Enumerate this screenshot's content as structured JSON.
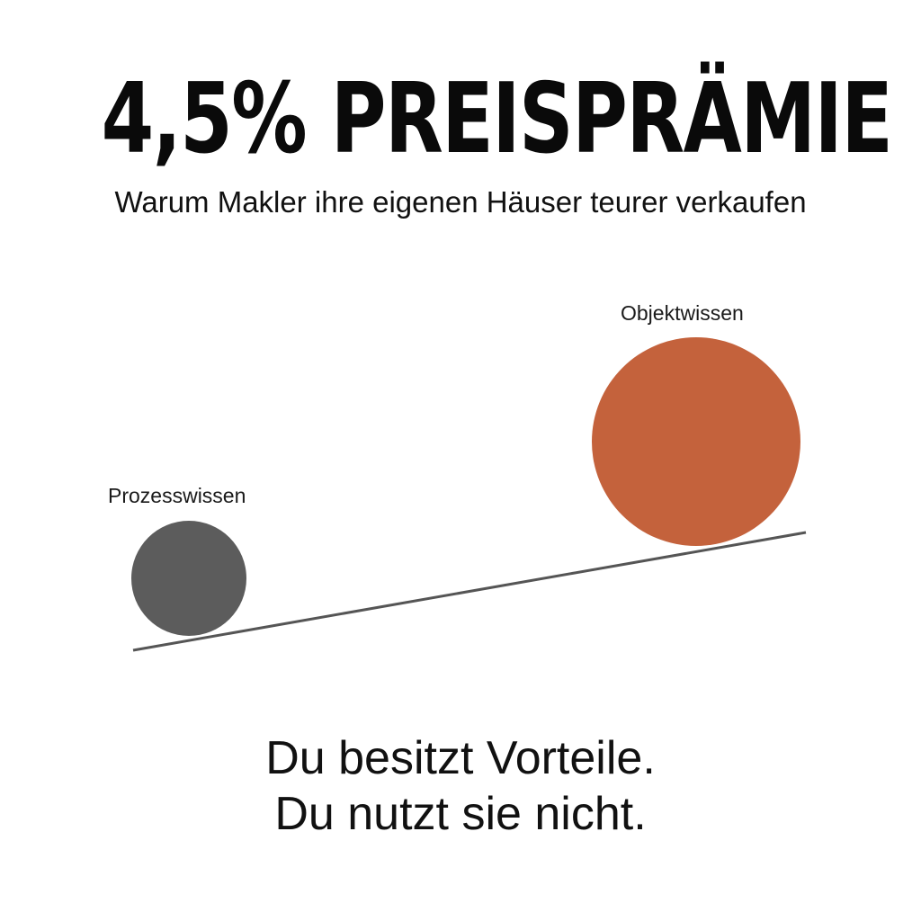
{
  "header": {
    "title": "4,5% PREISPRÄMIE",
    "subtitle": "Warum Makler ihre eigenen Häuser teurer verkaufen"
  },
  "diagram": {
    "left_node": {
      "label": "Prozesswissen",
      "color": "#5c5c5c"
    },
    "right_node": {
      "label": "Objektwissen",
      "color": "#c4623c"
    },
    "ramp_color": "#555555"
  },
  "footer": {
    "line1": "Du besitzt Vorteile.",
    "line2": "Du nutzt sie nicht."
  }
}
